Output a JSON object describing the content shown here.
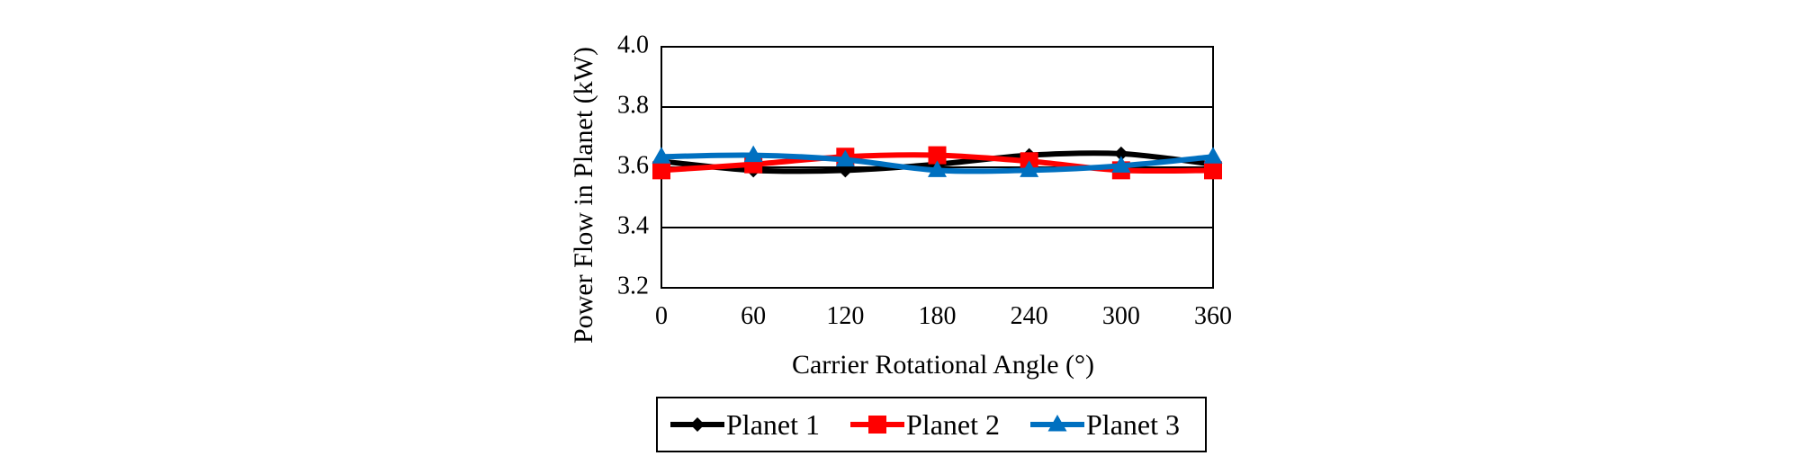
{
  "chart_data": {
    "type": "line",
    "xlabel": "Carrier Rotational Angle (°)",
    "ylabel": "Power Flow in Planet (kW)",
    "x": [
      0,
      60,
      120,
      180,
      240,
      300,
      360
    ],
    "xlim": [
      0,
      360
    ],
    "ylim": [
      3.2,
      4.0
    ],
    "xticks": [
      0,
      60,
      120,
      180,
      240,
      300,
      360
    ],
    "yticks": [
      3.2,
      3.4,
      3.6,
      3.8,
      4.0
    ],
    "xtick_labels": [
      "0",
      "60",
      "120",
      "180",
      "240",
      "300",
      "360"
    ],
    "ytick_labels": [
      "3.2",
      "3.4",
      "3.6",
      "3.8",
      "4.0"
    ],
    "grid": true,
    "legend_position": "bottom",
    "series": [
      {
        "name": "Planet 1",
        "color": "#000000",
        "marker": "diamond",
        "values": [
          3.62,
          3.59,
          3.59,
          3.61,
          3.64,
          3.645,
          3.61
        ]
      },
      {
        "name": "Planet 2",
        "color": "#ff0000",
        "marker": "square",
        "values": [
          3.59,
          3.61,
          3.635,
          3.64,
          3.62,
          3.59,
          3.59
        ]
      },
      {
        "name": "Planet 3",
        "color": "#0070c0",
        "marker": "triangle",
        "values": [
          3.635,
          3.64,
          3.625,
          3.59,
          3.59,
          3.605,
          3.635
        ]
      }
    ]
  }
}
